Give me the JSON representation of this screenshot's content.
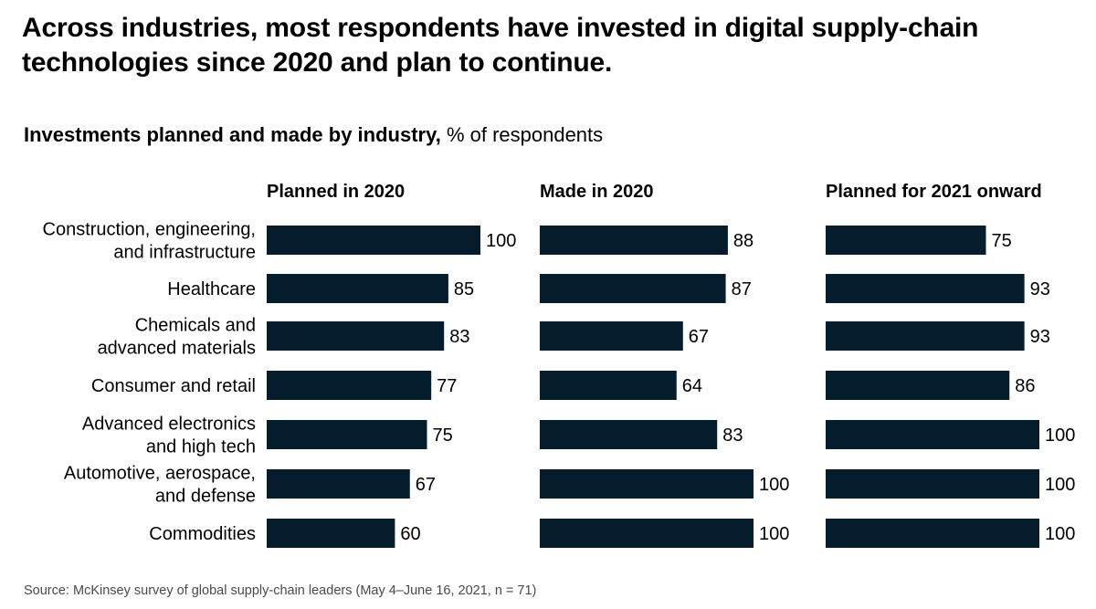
{
  "headline": "Across industries, most respondents have invested in digital supply-chain technologies since 2020 and plan to continue.",
  "subtitle_bold": "Investments planned and made by industry,",
  "subtitle_unit": "% of respondents",
  "source": "Source: McKinsey survey of global supply-chain leaders (May 4–June 16, 2021, n = 71)",
  "colors": {
    "bar": "#051c2c",
    "text": "#000000"
  },
  "chart_data": {
    "type": "bar",
    "orientation": "horizontal",
    "layout": "small-multiples",
    "categories": [
      [
        "Construction, engineering,",
        "and infrastructure"
      ],
      [
        "Healthcare"
      ],
      [
        "Chemicals and",
        "advanced materials"
      ],
      [
        "Consumer and retail"
      ],
      [
        "Advanced electronics",
        "and high tech"
      ],
      [
        "Automotive, aerospace,",
        "and defense"
      ],
      [
        "Commodities"
      ]
    ],
    "series": [
      {
        "name": "Planned in 2020",
        "values": [
          100,
          85,
          83,
          77,
          75,
          67,
          60
        ]
      },
      {
        "name": "Made in 2020",
        "values": [
          88,
          87,
          67,
          64,
          83,
          100,
          100
        ]
      },
      {
        "name": "Planned for 2021 onward",
        "values": [
          75,
          93,
          93,
          86,
          100,
          100,
          100
        ]
      }
    ],
    "xlim": [
      0,
      100
    ],
    "grid": false,
    "legend": "none"
  }
}
